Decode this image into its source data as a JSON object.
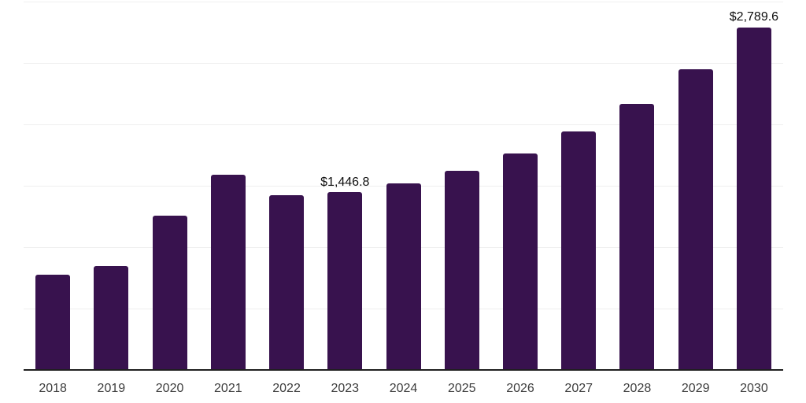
{
  "chart_data": {
    "type": "bar",
    "title": "",
    "xlabel": "",
    "ylabel": "",
    "categories": [
      "2018",
      "2019",
      "2020",
      "2021",
      "2022",
      "2023",
      "2024",
      "2025",
      "2026",
      "2027",
      "2028",
      "2029",
      "2030"
    ],
    "values": [
      776,
      846,
      1256,
      1590,
      1423,
      1446.8,
      1519,
      1622,
      1763,
      1942,
      2167,
      2449,
      2789.6
    ],
    "data_labels": {
      "2023": "$1,446.8",
      "2030": "$2,789.6"
    },
    "ylim": [
      0,
      3000
    ],
    "gridline_step": 500,
    "grid": "horizontal-light",
    "legend": "none",
    "colors": {
      "bar_fill": "#38124E",
      "gridline": "#efefef",
      "axis_line": "#1f1f1f",
      "tick_label": "#3d3d3d",
      "data_label": "#0f0f0f",
      "background": "#ffffff"
    }
  }
}
